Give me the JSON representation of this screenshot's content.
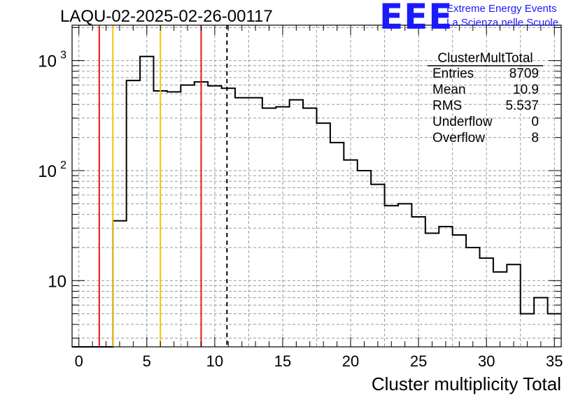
{
  "title": "LAQU-02-2025-02-26-00117",
  "logo": {
    "mark": "EEE",
    "line1": "Extreme Energy Events",
    "line2": "La Scienza nelle Scuole",
    "color": "#1a1aff"
  },
  "stats_box": {
    "name": "ClusterMultTotal",
    "rows": [
      {
        "label": "Entries",
        "value": "8709"
      },
      {
        "label": "Mean",
        "value": "10.9"
      },
      {
        "label": "RMS",
        "value": "5.537"
      },
      {
        "label": "Underflow",
        "value": "0"
      },
      {
        "label": "Overflow",
        "value": "8"
      }
    ]
  },
  "chart_data": {
    "type": "histogram",
    "xlabel": "Cluster multiplicity Total",
    "ylabel": "",
    "xlim": [
      -0.5,
      35.5
    ],
    "ylim": [
      2.5,
      2100
    ],
    "yscale": "log",
    "grid": true,
    "bin_width": 1,
    "x_ticks": [
      "0",
      "5",
      "10",
      "15",
      "20",
      "25",
      "30",
      "35"
    ],
    "y_tick_values": [
      10,
      100,
      1000
    ],
    "y_tick_labels": [
      "10",
      "10^2",
      "10^3"
    ],
    "bin_centers": [
      0,
      1,
      2,
      3,
      4,
      5,
      6,
      7,
      8,
      9,
      10,
      11,
      12,
      13,
      14,
      15,
      16,
      17,
      18,
      19,
      20,
      21,
      22,
      23,
      24,
      25,
      26,
      27,
      28,
      29,
      30,
      31,
      32,
      33,
      34,
      35
    ],
    "values": [
      0,
      0,
      0,
      35,
      660,
      1090,
      530,
      520,
      600,
      640,
      590,
      560,
      460,
      460,
      370,
      380,
      440,
      370,
      270,
      180,
      125,
      100,
      75,
      48,
      50,
      38,
      27,
      31,
      26,
      20,
      16,
      12,
      14,
      5,
      7,
      5
    ],
    "vertical_lines": [
      {
        "x": 1.5,
        "color": "#e8141a",
        "style": "solid"
      },
      {
        "x": 2.5,
        "color": "#f2c40d",
        "style": "solid"
      },
      {
        "x": 6.0,
        "color": "#f2c40d",
        "style": "solid"
      },
      {
        "x": 9.0,
        "color": "#e8141a",
        "style": "solid"
      },
      {
        "x": 10.9,
        "color": "#000000",
        "style": "dashed"
      }
    ]
  }
}
